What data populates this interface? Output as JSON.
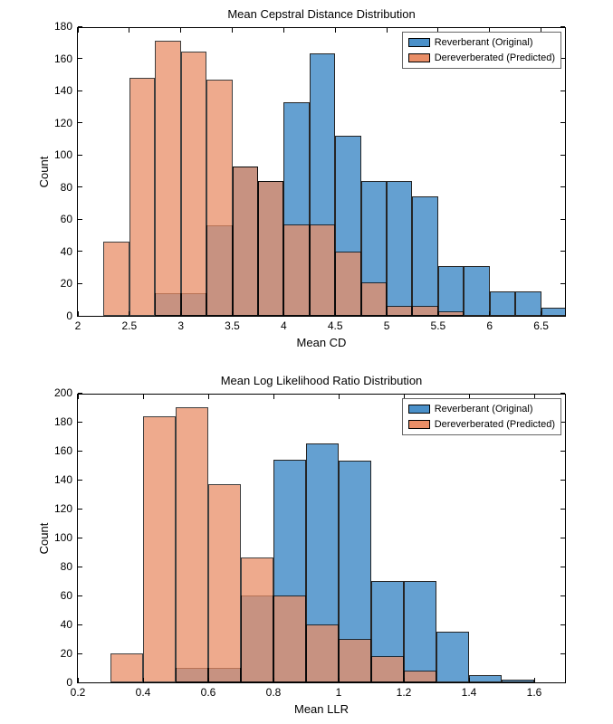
{
  "top_chart": {
    "type": "histogram",
    "title": "Mean Cepstral Distance Distribution",
    "xlabel": "Mean CD",
    "ylabel": "Count",
    "xlim": [
      2.0,
      6.75
    ],
    "ylim": [
      0,
      180
    ],
    "xticks": [
      2,
      2.5,
      3,
      3.5,
      4,
      4.5,
      5,
      5.5,
      6,
      6.5
    ],
    "yticks": [
      0,
      20,
      40,
      60,
      80,
      100,
      120,
      140,
      160,
      180
    ],
    "bin_width": 0.25,
    "series": [
      {
        "label": "Reverberant (Original)",
        "color": "#4a90c9",
        "opacity": 0.85,
        "bin_start": 2.75,
        "values": [
          14,
          14,
          56,
          93,
          84,
          133,
          163,
          112,
          84,
          84,
          74,
          31,
          31,
          15,
          15,
          5
        ]
      },
      {
        "label": "Dereverberated (Predicted)",
        "color": "#e98e67",
        "opacity": 0.75,
        "bin_start": 2.25,
        "values": [
          46,
          148,
          171,
          164,
          147,
          93,
          84,
          57,
          57,
          40,
          21,
          6,
          6,
          3
        ]
      }
    ],
    "legend_labels": [
      "Reverberant (Original)",
      "Dereverberated (Predicted)"
    ],
    "legend_colors": [
      "#4a90c9",
      "#e98e67"
    ],
    "background_color": "#ffffff",
    "axis_color": "#000000",
    "title_fontsize": 13,
    "label_fontsize": 13,
    "tick_fontsize": 12
  },
  "bottom_chart": {
    "type": "histogram",
    "title": "Mean Log Likelihood Ratio Distribution",
    "xlabel": "Mean LLR",
    "ylabel": "Count",
    "xlim": [
      0.2,
      1.7
    ],
    "ylim": [
      0,
      200
    ],
    "xticks": [
      0.2,
      0.4,
      0.6,
      0.8,
      1,
      1.2,
      1.4,
      1.6
    ],
    "yticks": [
      0,
      20,
      40,
      60,
      80,
      100,
      120,
      140,
      160,
      180,
      200
    ],
    "bin_width": 0.1,
    "series": [
      {
        "label": "Reverberant (Original)",
        "color": "#4a90c9",
        "opacity": 0.85,
        "bin_start": 0.5,
        "values": [
          10,
          10,
          60,
          154,
          165,
          153,
          70,
          70,
          35,
          5,
          2
        ]
      },
      {
        "label": "Dereverberated (Predicted)",
        "color": "#e98e67",
        "opacity": 0.75,
        "bin_start": 0.3,
        "values": [
          20,
          184,
          190,
          137,
          86,
          60,
          40,
          30,
          18,
          8
        ]
      }
    ],
    "legend_labels": [
      "Reverberant (Original)",
      "Dereverberated (Predicted)"
    ],
    "legend_colors": [
      "#4a90c9",
      "#e98e67"
    ],
    "background_color": "#ffffff",
    "axis_color": "#000000",
    "title_fontsize": 13,
    "label_fontsize": 13,
    "tick_fontsize": 12
  }
}
